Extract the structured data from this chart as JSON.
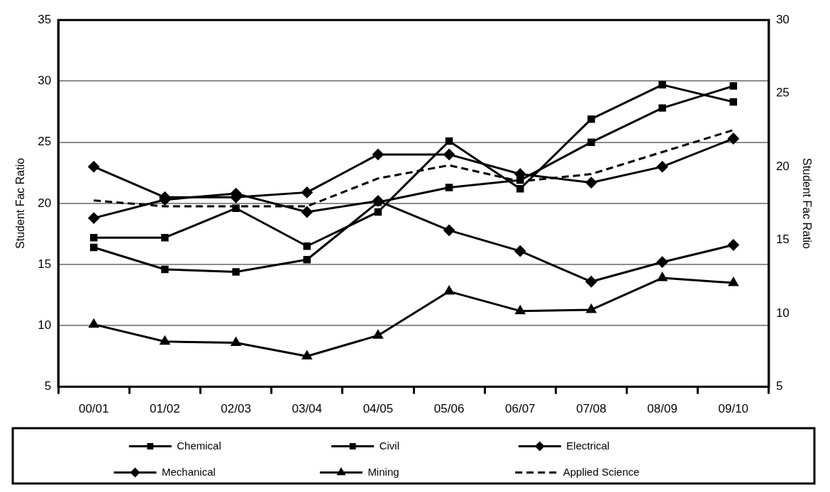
{
  "chart_data": {
    "type": "line",
    "ylabel": "Student Fac Ratio",
    "y2label": "Student Fac Ratio",
    "categories": [
      "00/01",
      "01/02",
      "02/03",
      "03/04",
      "04/05",
      "05/06",
      "06/07",
      "07/08",
      "08/09",
      "09/10"
    ],
    "series": [
      {
        "name": "Chemical",
        "color": "#000000",
        "marker": "square",
        "line_style": "solid",
        "values": [
          17.2,
          17.2,
          19.6,
          16.5,
          19.3,
          25.1,
          21.2,
          26.9,
          29.7,
          28.3
        ]
      },
      {
        "name": "Civil",
        "color": "#000000",
        "marker": "square",
        "line_style": "solid",
        "values": [
          16.4,
          14.6,
          14.4,
          15.4,
          20.1,
          21.3,
          21.9,
          25.0,
          27.8,
          29.6
        ]
      },
      {
        "name": "Electrical",
        "color": "#000000",
        "marker": "diamond",
        "line_style": "solid",
        "values": [
          18.8,
          20.3,
          20.8,
          19.3,
          20.2,
          17.8,
          16.1,
          13.6,
          15.2,
          16.6
        ]
      },
      {
        "name": "Mechanical",
        "color": "#000000",
        "marker": "diamond",
        "line_style": "solid",
        "values": [
          23.0,
          20.5,
          20.5,
          20.9,
          24.0,
          24.0,
          22.4,
          21.7,
          23.0,
          25.3
        ]
      },
      {
        "name": "Mining",
        "color": "#000000",
        "marker": "triangle",
        "line_style": "solid",
        "values": [
          10.1,
          8.7,
          8.6,
          7.5,
          9.2,
          12.8,
          11.2,
          11.3,
          13.9,
          13.5
        ]
      },
      {
        "name": "Applied Science",
        "color": "#000000",
        "marker": "none",
        "line_style": "dashed",
        "axis": "y2",
        "values": [
          17.7,
          17.3,
          17.3,
          17.3,
          19.2,
          20.1,
          19.0,
          19.5,
          21.0,
          22.5
        ]
      }
    ],
    "ylim": [
      5,
      35
    ],
    "yticks": [
      5,
      10,
      15,
      20,
      25,
      30,
      35
    ],
    "y2lim": [
      5,
      30
    ],
    "y2ticks": [
      5,
      10,
      15,
      20,
      25,
      30
    ],
    "grid": "y",
    "legend": "bottom"
  }
}
